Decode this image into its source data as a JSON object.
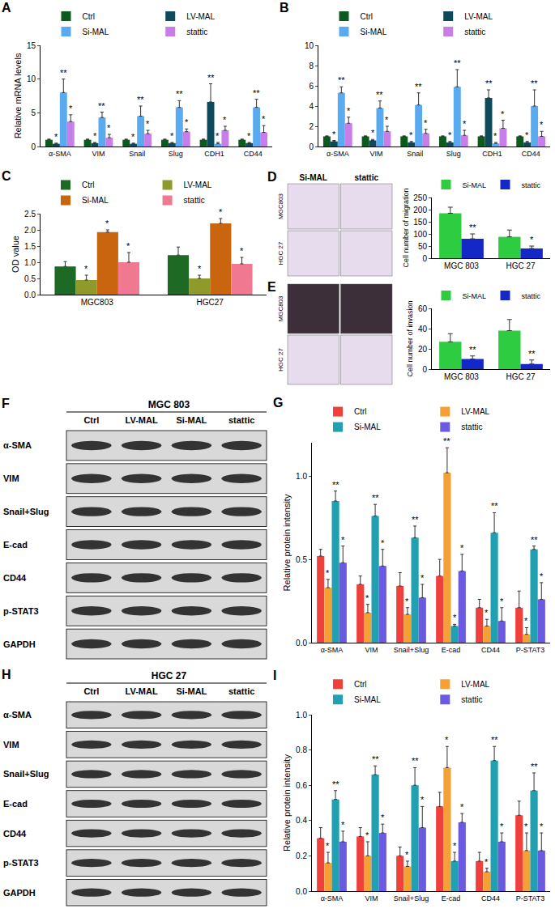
{
  "chart_data": [
    {
      "panel": "A",
      "type": "bar",
      "categories": [
        "α-SMA",
        "VIM",
        "Snail",
        "Slug",
        "CDH1",
        "CD44"
      ],
      "y_label": "Relative mRNA levels",
      "ylim": [
        0,
        15
      ],
      "yticks": [
        0,
        5,
        10,
        15
      ],
      "legend": "top",
      "series": [
        {
          "name": "Ctrl",
          "color": "#0b5a1e",
          "values": [
            1,
            1,
            1,
            1,
            1,
            1
          ],
          "errors": [
            0.1,
            0.1,
            0.1,
            0.1,
            0.1,
            0.1
          ]
        },
        {
          "name": "LV-MAL",
          "color": "#0e4a5a",
          "values": [
            0.4,
            0.5,
            0.4,
            0.5,
            6.6,
            0.5
          ],
          "errors": [
            0.1,
            0.1,
            0.1,
            0.1,
            2.7,
            0.1
          ],
          "significance": [
            "*",
            "*",
            "*",
            "*",
            "**",
            "*"
          ]
        },
        {
          "name": "Si-MAL",
          "color": "#5aaaf0",
          "values": [
            8,
            4.3,
            4.5,
            5.8,
            0.4,
            5.8
          ],
          "errors": [
            2,
            0.8,
            1.5,
            1,
            0.2,
            1.2
          ],
          "significance": [
            "**",
            "**",
            "**",
            "**",
            "*",
            "**"
          ]
        },
        {
          "name": "stattic",
          "color": "#c77ee8",
          "values": [
            3.7,
            1.3,
            1.9,
            2.2,
            2.4,
            2.1
          ],
          "errors": [
            1,
            0.5,
            0.5,
            0.4,
            0.6,
            1
          ],
          "significance": [
            "*",
            "*",
            "*",
            "*",
            "*",
            "*"
          ]
        }
      ]
    },
    {
      "panel": "B",
      "type": "bar",
      "categories": [
        "α-SMA",
        "VIM",
        "Snail",
        "Slug",
        "CDH1",
        "CD44"
      ],
      "ylim": [
        0,
        10
      ],
      "yticks": [
        0,
        2,
        4,
        6,
        8,
        10
      ],
      "legend": "top",
      "series": [
        {
          "name": "Ctrl",
          "color": "#0b5a1e",
          "values": [
            1,
            1,
            1,
            1,
            1,
            1
          ],
          "errors": [
            0.05,
            0.05,
            0.05,
            0.05,
            0.05,
            0.05
          ]
        },
        {
          "name": "LV-MAL",
          "color": "#0e4a5a",
          "values": [
            0.5,
            0.6,
            0.4,
            0.4,
            4.8,
            0.4
          ],
          "errors": [
            0.1,
            0.1,
            0.1,
            0.1,
            0.8,
            0.1
          ],
          "significance": [
            "*",
            "*",
            "*",
            "*",
            "**",
            "*"
          ]
        },
        {
          "name": "Si-MAL",
          "color": "#5aaaf0",
          "values": [
            5.3,
            3.8,
            4.1,
            5.9,
            0.3,
            4.0
          ],
          "errors": [
            0.6,
            0.7,
            1.2,
            1.7,
            0.1,
            1.6
          ],
          "significance": [
            "**",
            "**",
            "**",
            "**",
            "*",
            "**"
          ]
        },
        {
          "name": "stattic",
          "color": "#c77ee8",
          "values": [
            2.3,
            1.5,
            1.3,
            1.1,
            1.8,
            1.0
          ],
          "errors": [
            0.6,
            0.5,
            0.4,
            0.5,
            0.8,
            0.5
          ],
          "significance": [
            "*",
            "*",
            "*",
            "*",
            "*",
            "*"
          ]
        }
      ]
    },
    {
      "panel": "C",
      "type": "bar",
      "categories": [
        "MGC803",
        "HGC27"
      ],
      "y_label": "OD value",
      "ylim": [
        0,
        2.5
      ],
      "yticks": [
        {
          "value": 0,
          "label": "0.0"
        },
        0.5,
        {
          "value": 1,
          "label": "1.0"
        },
        1.5,
        {
          "value": 2,
          "label": "2.0"
        },
        2.5
      ],
      "legend": "top",
      "series": [
        {
          "name": "Ctrl",
          "color": "#1e6a24",
          "values": [
            0.87,
            1.22
          ],
          "errors": [
            0.15,
            0.25
          ]
        },
        {
          "name": "LV-MAL",
          "color": "#8e9a2a",
          "values": [
            0.45,
            0.5
          ],
          "errors": [
            0.15,
            0.1
          ],
          "significance": [
            "*",
            "*"
          ]
        },
        {
          "name": "Si-MAL",
          "color": "#c8650e",
          "values": [
            1.93,
            2.2
          ],
          "errors": [
            0.07,
            0.15
          ],
          "significance": [
            "*",
            "*"
          ]
        },
        {
          "name": "stattic",
          "color": "#f07890",
          "values": [
            1.0,
            0.95
          ],
          "errors": [
            0.3,
            0.2
          ],
          "significance": [
            "*",
            "*"
          ]
        }
      ]
    },
    {
      "type": "bar",
      "categories": [
        "MGC 803",
        "HGC 27"
      ],
      "y_label": "Cell number of migration",
      "ylim": [
        0,
        250
      ],
      "yticks": [
        0,
        50,
        100,
        150,
        200,
        250
      ],
      "legend": "top",
      "series": [
        {
          "name": "Si-MAL",
          "color": "#2ecc40",
          "values": [
            185,
            88
          ],
          "errors": [
            25,
            28
          ]
        },
        {
          "name": "stattic",
          "color": "#1428c8",
          "values": [
            80,
            40
          ],
          "errors": [
            20,
            10
          ],
          "significance": [
            "**",
            "*"
          ]
        }
      ]
    },
    {
      "type": "bar",
      "categories": [
        "MGC 803",
        "HGC 27"
      ],
      "y_label": "Cell number of invasion",
      "ylim": [
        0,
        60
      ],
      "yticks": [
        0,
        20,
        40,
        60
      ],
      "legend": "top",
      "series": [
        {
          "name": "Si-MAL",
          "color": "#2ecc40",
          "values": [
            27,
            38
          ],
          "errors": [
            8,
            11
          ]
        },
        {
          "name": "stattic",
          "color": "#1428c8",
          "values": [
            10,
            5
          ],
          "errors": [
            3,
            4
          ],
          "significance": [
            "**",
            "**"
          ]
        }
      ]
    },
    {
      "panel": "G",
      "type": "bar",
      "categories": [
        "α-SMA",
        "VIM",
        "Snail+Slug",
        "E-cad",
        "CD44",
        "P-STAT3"
      ],
      "y_label": "Relative protein intensity",
      "ylim": [
        0,
        1.2
      ],
      "yticks": [
        {
          "value": 0,
          "label": "0.0"
        },
        0.5,
        {
          "value": 1,
          "label": "1.0"
        }
      ],
      "legend": "top",
      "series": [
        {
          "name": "Ctrl",
          "color": "#f0403c",
          "values": [
            0.52,
            0.35,
            0.34,
            0.4,
            0.21,
            0.21
          ],
          "errors": [
            0.04,
            0.05,
            0.08,
            0.1,
            0.05,
            0.1
          ]
        },
        {
          "name": "LV-MAL",
          "color": "#f5a035",
          "values": [
            0.33,
            0.18,
            0.17,
            1.02,
            0.1,
            0.05
          ],
          "errors": [
            0.05,
            0.05,
            0.04,
            0.15,
            0.04,
            0.04
          ],
          "significance": [
            "*",
            "*",
            "*",
            "**",
            "*",
            "*"
          ]
        },
        {
          "name": "Si-MAL",
          "color": "#20a0b0",
          "values": [
            0.85,
            0.76,
            0.63,
            0.1,
            0.66,
            0.56
          ],
          "errors": [
            0.06,
            0.07,
            0.07,
            0.01,
            0.12,
            0.02
          ],
          "significance": [
            "**",
            "**",
            "**",
            "*",
            "**",
            "**"
          ]
        },
        {
          "name": "stattic",
          "color": "#6a5ae0",
          "values": [
            0.48,
            0.46,
            0.27,
            0.43,
            0.13,
            0.26
          ],
          "errors": [
            0.1,
            0.1,
            0.08,
            0.1,
            0.08,
            0.1
          ],
          "significance": [
            "*",
            "*",
            "*",
            "*",
            "*",
            "*"
          ]
        }
      ]
    },
    {
      "panel": "I",
      "type": "bar",
      "categories": [
        "α-SMA",
        "VIM",
        "Snail+Slug",
        "E-cad",
        "CD44",
        "P-STAT3"
      ],
      "y_label": "Relative protein intensity",
      "ylim": [
        0,
        1
      ],
      "yticks": [
        {
          "value": 0,
          "label": "0.0"
        },
        0.2,
        0.4,
        0.6,
        0.8,
        {
          "value": 1,
          "label": "1.0"
        }
      ],
      "legend": "top",
      "series": [
        {
          "name": "Ctrl",
          "color": "#f0403c",
          "values": [
            0.3,
            0.31,
            0.2,
            0.48,
            0.17,
            0.43
          ],
          "errors": [
            0.06,
            0.05,
            0.05,
            0.08,
            0.05,
            0.08
          ]
        },
        {
          "name": "LV-MAL",
          "color": "#f5a035",
          "values": [
            0.16,
            0.2,
            0.14,
            0.7,
            0.11,
            0.23
          ],
          "errors": [
            0.06,
            0.08,
            0.03,
            0.12,
            0.02,
            0.1
          ],
          "significance": [
            "*",
            "*",
            "*",
            "*",
            "*",
            "*"
          ]
        },
        {
          "name": "Si-MAL",
          "color": "#20a0b0",
          "values": [
            0.52,
            0.66,
            0.6,
            0.17,
            0.74,
            0.57
          ],
          "errors": [
            0.05,
            0.05,
            0.1,
            0.05,
            0.08,
            0.1
          ],
          "significance": [
            "**",
            "**",
            "**",
            "*",
            "**",
            "**"
          ]
        },
        {
          "name": "stattic",
          "color": "#6a5ae0",
          "values": [
            0.28,
            0.33,
            0.36,
            0.39,
            0.28,
            0.23
          ],
          "errors": [
            0.06,
            0.05,
            0.12,
            0.05,
            0.05,
            0.1
          ],
          "significance": [
            "*",
            "*",
            "*",
            "*",
            "*",
            "*"
          ]
        }
      ]
    }
  ],
  "image_panels": [
    {
      "panel": "D",
      "columns": [
        "Si-MAL",
        "stattic"
      ],
      "rows": [
        "MGC803",
        "HGC 27"
      ]
    },
    {
      "panel": "E",
      "rows": [
        "MGC803",
        "HGC 27"
      ]
    },
    {
      "panel": "F",
      "title": "MGC 803",
      "lanes": [
        "Ctrl",
        "LV-MAL",
        "Si-MAL",
        "stattic"
      ],
      "rows": [
        "α-SMA",
        "VIM",
        "Snail+Slug",
        "E-cad",
        "CD44",
        "p-STAT3",
        "GAPDH"
      ]
    },
    {
      "panel": "H",
      "title": "HGC 27",
      "lanes": [
        "Ctrl",
        "LV-MAL",
        "Si-MAL",
        "stattic"
      ],
      "rows": [
        "α-SMA",
        "VIM",
        "Snail+Slug",
        "E-cad",
        "CD44",
        "p-STAT3",
        "GAPDH"
      ]
    }
  ]
}
